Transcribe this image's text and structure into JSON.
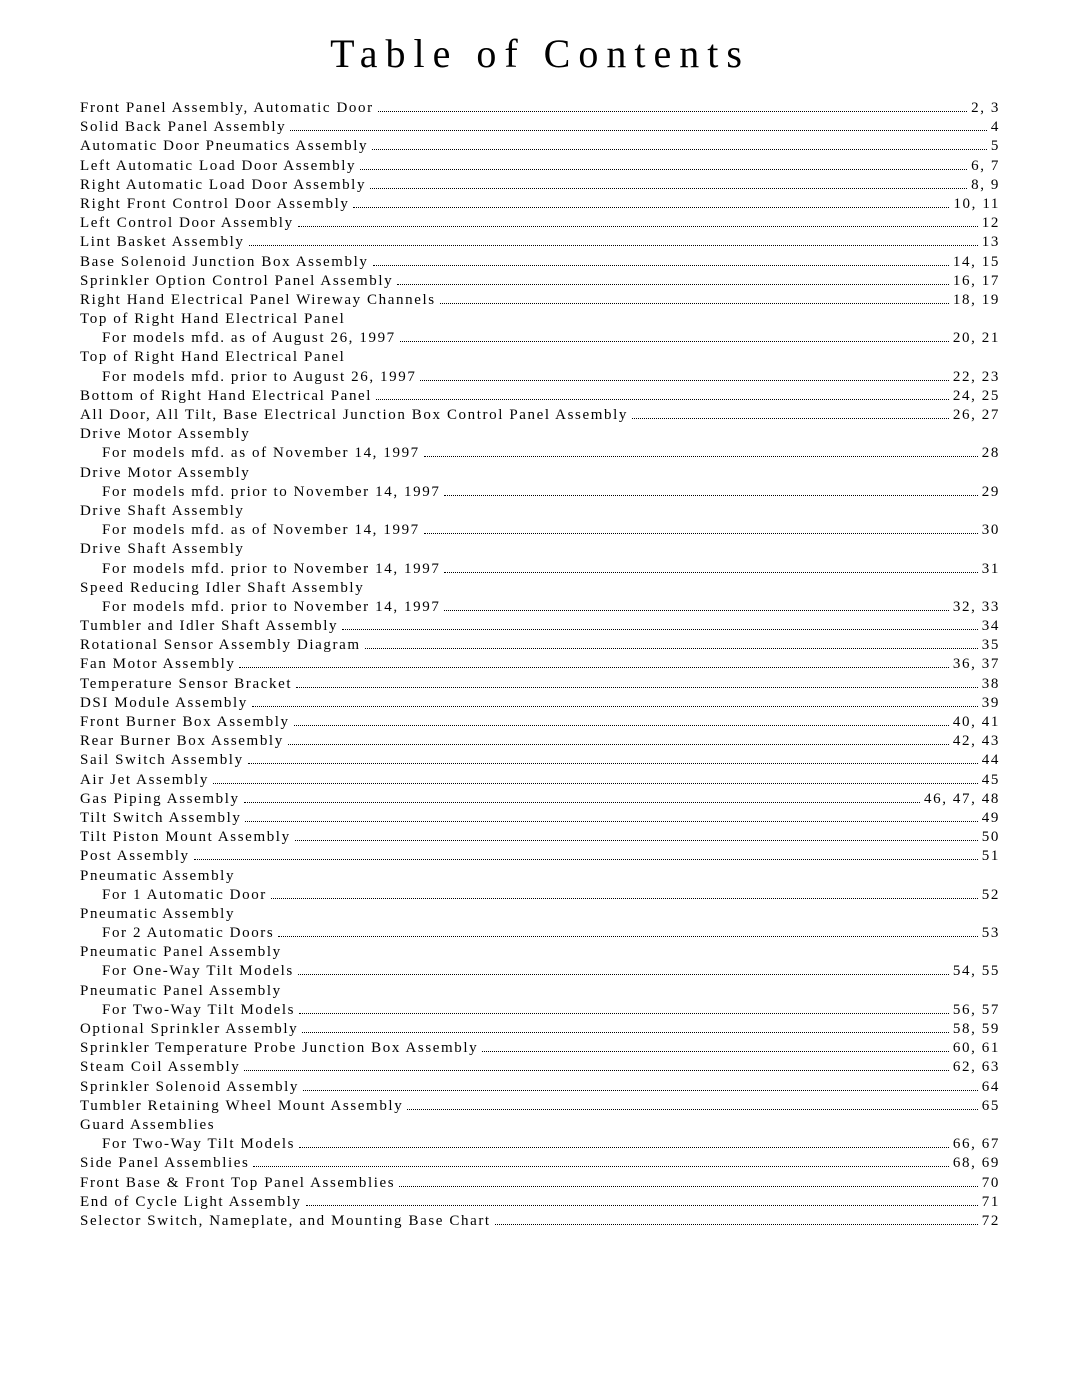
{
  "title": "Table of Contents",
  "title_fontsize": 40,
  "title_letter_spacing": 8,
  "body_fontsize": 15,
  "body_letter_spacing": 1.6,
  "text_color": "#000000",
  "background_color": "#ffffff",
  "leader_char": ".",
  "font_family": "Times New Roman",
  "entries": [
    {
      "label": "Front Panel Assembly, Automatic Door",
      "page": "2, 3"
    },
    {
      "label": "Solid Back Panel Assembly",
      "page": "4"
    },
    {
      "label": "Automatic Door Pneumatics Assembly",
      "page": "5"
    },
    {
      "label": "Left Automatic Load Door Assembly",
      "page": "6, 7"
    },
    {
      "label": "Right Automatic Load Door Assembly",
      "page": "8, 9"
    },
    {
      "label": "Right Front Control Door Assembly",
      "page": "10, 11"
    },
    {
      "label": "Left Control Door Assembly",
      "page": "12"
    },
    {
      "label": "Lint Basket Assembly",
      "page": "13"
    },
    {
      "label": "Base Solenoid Junction Box Assembly",
      "page": "14, 15"
    },
    {
      "label": "Sprinkler Option Control Panel Assembly",
      "page": "16, 17"
    },
    {
      "label": "Right Hand Electrical Panel Wireway Channels",
      "page": "18, 19"
    },
    {
      "heading": "Top of Right Hand Electrical Panel"
    },
    {
      "sub": true,
      "label": "For models mfd. as of August 26, 1997",
      "page": "20, 21"
    },
    {
      "heading": "Top of Right Hand Electrical Panel"
    },
    {
      "sub": true,
      "label": "For models mfd. prior to August 26, 1997",
      "page": "22, 23"
    },
    {
      "label": "Bottom of Right Hand Electrical Panel",
      "page": "24, 25"
    },
    {
      "label": "All Door, All Tilt, Base Electrical Junction Box Control Panel Assembly",
      "page": "26, 27"
    },
    {
      "heading": "Drive Motor Assembly"
    },
    {
      "sub": true,
      "label": "For models mfd. as of November 14, 1997",
      "page": "28"
    },
    {
      "heading": "Drive Motor Assembly"
    },
    {
      "sub": true,
      "label": "For models mfd. prior to November 14, 1997",
      "page": "29"
    },
    {
      "heading": "Drive Shaft Assembly"
    },
    {
      "sub": true,
      "label": "For models mfd. as of November 14, 1997",
      "page": "30"
    },
    {
      "heading": "Drive Shaft Assembly"
    },
    {
      "sub": true,
      "label": "For models mfd. prior to November 14, 1997",
      "page": "31"
    },
    {
      "heading": "Speed Reducing Idler Shaft Assembly"
    },
    {
      "sub": true,
      "label": "For models mfd. prior to November 14, 1997",
      "page": "32, 33"
    },
    {
      "label": "Tumbler and Idler Shaft Assembly",
      "page": "34"
    },
    {
      "label": "Rotational Sensor Assembly Diagram",
      "page": "35"
    },
    {
      "label": "Fan Motor Assembly",
      "page": "36, 37"
    },
    {
      "label": "Temperature Sensor Bracket",
      "page": "38"
    },
    {
      "label": "DSI Module Assembly",
      "page": "39"
    },
    {
      "label": "Front Burner Box Assembly",
      "page": "40, 41"
    },
    {
      "label": "Rear Burner Box Assembly",
      "page": "42, 43"
    },
    {
      "label": "Sail Switch Assembly",
      "page": "44"
    },
    {
      "label": "Air Jet Assembly",
      "page": "45"
    },
    {
      "label": "Gas Piping Assembly",
      "page": "46, 47, 48"
    },
    {
      "label": "Tilt Switch Assembly",
      "page": "49"
    },
    {
      "label": "Tilt Piston Mount Assembly",
      "page": "50"
    },
    {
      "label": "Post Assembly",
      "page": "51"
    },
    {
      "heading": "Pneumatic Assembly"
    },
    {
      "sub": true,
      "label": "For 1 Automatic Door",
      "page": "52"
    },
    {
      "heading": "Pneumatic Assembly"
    },
    {
      "sub": true,
      "label": "For 2 Automatic Doors",
      "page": "53"
    },
    {
      "heading": "Pneumatic Panel Assembly"
    },
    {
      "sub": true,
      "label": "For One-Way Tilt Models",
      "page": "54, 55"
    },
    {
      "heading": "Pneumatic Panel Assembly"
    },
    {
      "sub": true,
      "label": "For Two-Way Tilt Models",
      "page": "56, 57"
    },
    {
      "label": "Optional Sprinkler Assembly",
      "page": "58, 59"
    },
    {
      "label": "Sprinkler Temperature Probe Junction Box Assembly",
      "page": "60, 61"
    },
    {
      "label": "Steam Coil Assembly",
      "page": "62, 63"
    },
    {
      "label": "Sprinkler Solenoid Assembly",
      "page": "64"
    },
    {
      "label": "Tumbler Retaining Wheel Mount Assembly",
      "page": "65"
    },
    {
      "heading": "Guard Assemblies"
    },
    {
      "sub": true,
      "label": "For Two-Way Tilt Models",
      "page": "66, 67"
    },
    {
      "label": "Side Panel Assemblies",
      "page": "68, 69"
    },
    {
      "label": "Front Base & Front Top Panel Assemblies",
      "page": "70"
    },
    {
      "label": "End of Cycle Light Assembly",
      "page": "71"
    },
    {
      "label": "Selector Switch, Nameplate, and Mounting Base Chart",
      "page": "72"
    }
  ]
}
